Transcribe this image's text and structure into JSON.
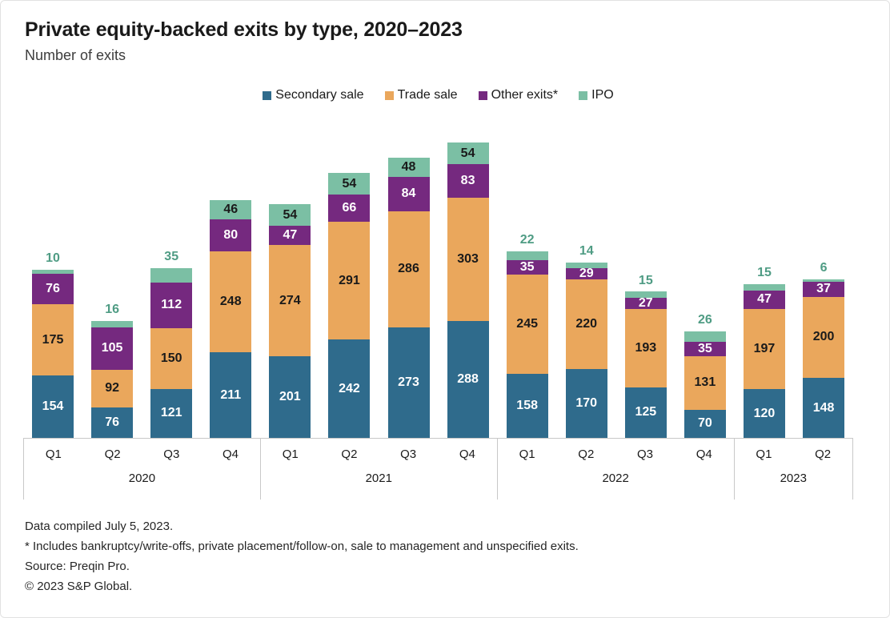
{
  "title": "Private equity-backed exits by type, 2020–2023",
  "subtitle": "Number of exits",
  "legend": [
    {
      "label": "Secondary sale",
      "color": "#2f6b8c"
    },
    {
      "label": "Trade sale",
      "color": "#eaa75c"
    },
    {
      "label": "Other exits*",
      "color": "#75297f"
    },
    {
      "label": "IPO",
      "color": "#7bbfa4"
    }
  ],
  "chart_data": {
    "type": "bar",
    "stacked": true,
    "title": "Private equity-backed exits by type, 2020–2023",
    "ylabel": "Number of exits",
    "xlabel": "",
    "legend_position": "top-center",
    "grid": false,
    "axis_color": "#c8c8c8",
    "small_value_label_color": "#4f9c84",
    "categories": [
      "2020-Q1",
      "2020-Q2",
      "2020-Q3",
      "2020-Q4",
      "2021-Q1",
      "2021-Q2",
      "2021-Q3",
      "2021-Q4",
      "2022-Q1",
      "2022-Q2",
      "2022-Q3",
      "2022-Q4",
      "2023-Q1",
      "2023-Q2"
    ],
    "groups": [
      {
        "year": "2020",
        "quarters": [
          "Q1",
          "Q2",
          "Q3",
          "Q4"
        ]
      },
      {
        "year": "2021",
        "quarters": [
          "Q1",
          "Q2",
          "Q3",
          "Q4"
        ]
      },
      {
        "year": "2022",
        "quarters": [
          "Q1",
          "Q2",
          "Q3",
          "Q4"
        ]
      },
      {
        "year": "2023",
        "quarters": [
          "Q1",
          "Q2"
        ]
      }
    ],
    "series": [
      {
        "name": "Secondary sale",
        "color": "#2f6b8c",
        "label_color": "#ffffff",
        "values": [
          154,
          76,
          121,
          211,
          201,
          242,
          273,
          288,
          158,
          170,
          125,
          70,
          120,
          148
        ]
      },
      {
        "name": "Trade sale",
        "color": "#eaa75c",
        "label_color": "#1a1a1a",
        "values": [
          175,
          92,
          150,
          248,
          274,
          291,
          286,
          303,
          245,
          220,
          193,
          131,
          197,
          200
        ]
      },
      {
        "name": "Other exits*",
        "color": "#75297f",
        "label_color": "#ffffff",
        "values": [
          76,
          105,
          112,
          80,
          47,
          66,
          84,
          83,
          35,
          29,
          27,
          35,
          47,
          37
        ]
      },
      {
        "name": "IPO",
        "color": "#7bbfa4",
        "label_color": "#1a1a1a",
        "values": [
          10,
          16,
          35,
          46,
          54,
          54,
          48,
          54,
          22,
          14,
          15,
          26,
          15,
          6
        ]
      }
    ]
  },
  "footnotes": [
    "Data compiled July 5, 2023.",
    "* Includes bankruptcy/write-offs, private placement/follow-on, sale to management and unspecified exits.",
    "Source: Preqin Pro.",
    "© 2023 S&P Global."
  ]
}
